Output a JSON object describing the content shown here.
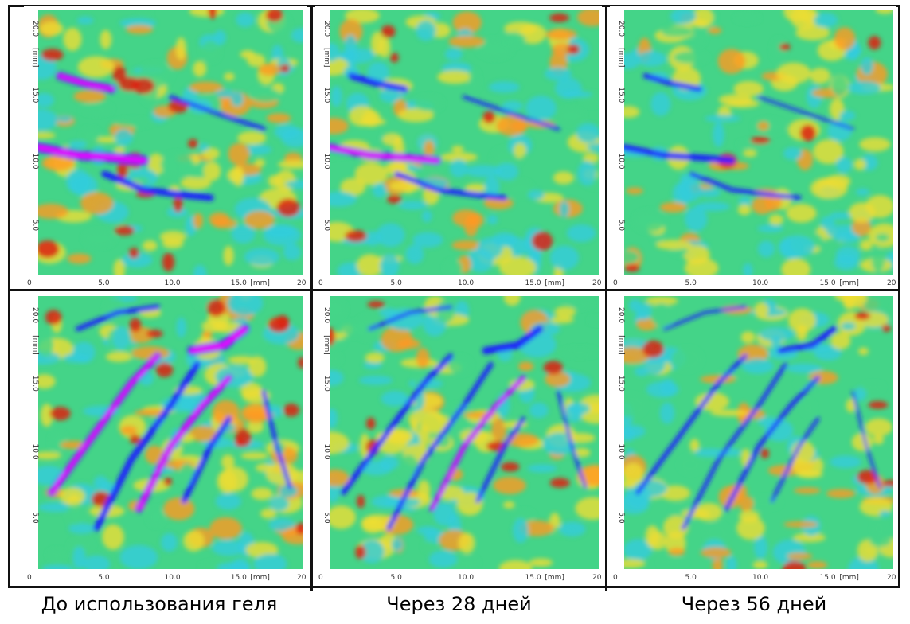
{
  "captions": [
    "До использования геля",
    "Через 28 дней",
    "Через 56 дней"
  ],
  "axis": {
    "unit": "[mm]",
    "x_ticks": [
      "5.0",
      "10.0",
      "15.0",
      "20.0"
    ],
    "y_ticks": [
      "20.0",
      "15.0",
      "10.0",
      "5.0"
    ],
    "origin": "0"
  },
  "colors": {
    "low": "#ff00ff",
    "deep": "#1a1aff",
    "cyan": "#33ccdd",
    "green": "#44d488",
    "yellow": "#eedd33",
    "orange": "#ff9922",
    "high": "#dd2211"
  }
}
